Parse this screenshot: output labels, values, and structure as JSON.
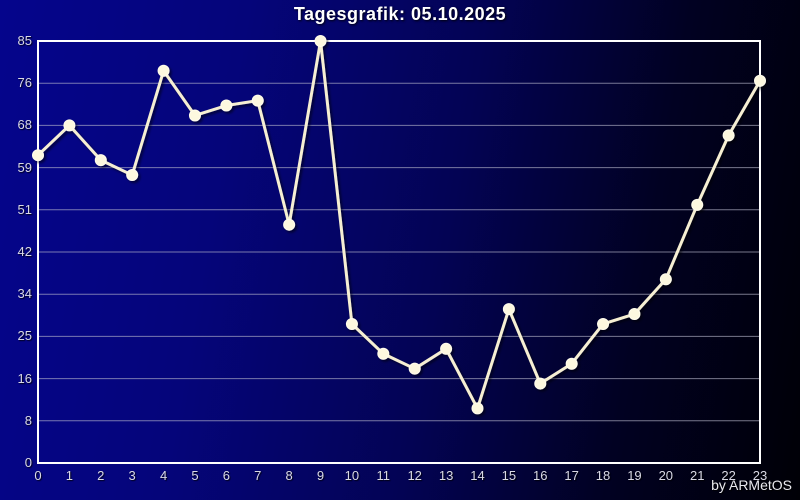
{
  "window": {
    "title": "Tagesgrafik: 05.10.2025",
    "credit": "by ARMetOS"
  },
  "colors": {
    "background_left": "#05058c",
    "background_right": "#000006",
    "frame": "#ffffff",
    "gridline": "#b8b8cc",
    "line": "#f6efd3",
    "marker_fill": "#fdf8df",
    "tick_text": "#d9d9e6",
    "title_text": "#ffffff"
  },
  "chart_data": {
    "type": "line",
    "title": "Tagesgrafik: 05.10.2025",
    "x": [
      0,
      1,
      2,
      3,
      4,
      5,
      6,
      7,
      8,
      9,
      10,
      11,
      12,
      13,
      14,
      15,
      16,
      17,
      18,
      19,
      20,
      21,
      22,
      23
    ],
    "values": [
      62,
      68,
      61,
      58,
      79,
      70,
      72,
      73,
      48,
      85,
      28,
      22,
      19,
      23,
      11,
      31,
      16,
      20,
      28,
      30,
      37,
      52,
      66,
      77
    ],
    "xlabel": "",
    "ylabel": "",
    "xlim": [
      0,
      23
    ],
    "ylim": [
      0,
      85
    ],
    "y_tick_labels": [
      "85",
      "76",
      "68",
      "59",
      "51",
      "42",
      "34",
      "25",
      "16",
      "8",
      "0"
    ],
    "x_tick_labels": [
      "0",
      "1",
      "2",
      "3",
      "4",
      "5",
      "6",
      "7",
      "8",
      "9",
      "10",
      "11",
      "12",
      "13",
      "14",
      "15",
      "16",
      "17",
      "18",
      "19",
      "20",
      "21",
      "22",
      "23"
    ],
    "grid": "horizontal",
    "legend": "none",
    "marker": "circle",
    "credit": "by ARMetOS"
  }
}
